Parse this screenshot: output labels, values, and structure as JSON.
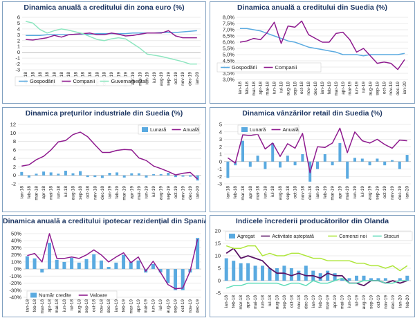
{
  "colors": {
    "blue": "#5aaae0",
    "purple": "#8e1a8e",
    "mint": "#8ee6c0",
    "dark": "#5a1466",
    "lime": "#aee63a",
    "teal": "#5fdcb8",
    "lightblue": "#9fd4f4"
  },
  "chart_data": [
    {
      "type": "line",
      "title": "Dinamica anuală a creditului din zona euro (%)",
      "categories": [
        "ian-18",
        "feb-18",
        "mar-18",
        "apr-18",
        "mai-18",
        "iun-18",
        "iul-18",
        "aug-18",
        "sep-18",
        "oct-18",
        "nov-18",
        "dec-18",
        "ian-19",
        "feb-19",
        "mar-19",
        "apr-19",
        "mai-19",
        "iun-19",
        "iul-19",
        "aug-19",
        "sep-19",
        "oct-19",
        "nov-19",
        "dec-19",
        "ian-20"
      ],
      "ylim": [
        -3,
        6
      ],
      "yticks": [
        "-3",
        "-2",
        "-1",
        "0",
        "1",
        "2",
        "3",
        "4",
        "5",
        "6"
      ],
      "series": [
        {
          "name": "Gospodării",
          "kind": "line",
          "color": "#5aaae0",
          "values": [
            2.9,
            2.9,
            2.9,
            3.0,
            3.0,
            3.0,
            3.0,
            3.1,
            3.1,
            3.1,
            3.2,
            3.2,
            3.2,
            3.2,
            3.2,
            3.3,
            3.3,
            3.3,
            3.3,
            3.4,
            3.4,
            3.4,
            3.5,
            3.6,
            3.7
          ]
        },
        {
          "name": "Companii",
          "kind": "line",
          "color": "#8e1a8e",
          "values": [
            2.2,
            2.1,
            2.3,
            2.5,
            2.9,
            2.6,
            3.0,
            3.1,
            3.2,
            3.3,
            3.0,
            3.0,
            3.3,
            3.1,
            2.8,
            2.9,
            3.1,
            3.3,
            3.3,
            3.3,
            3.7,
            2.8,
            2.5,
            2.5,
            2.5
          ]
        },
        {
          "name": "Guvernamental",
          "kind": "line",
          "color": "#8ee6c0",
          "values": [
            5.3,
            5.0,
            3.9,
            3.3,
            3.7,
            4.0,
            3.8,
            3.5,
            3.2,
            2.7,
            2.2,
            2.0,
            2.3,
            2.5,
            2.3,
            1.5,
            0.7,
            -0.3,
            -0.5,
            -0.7,
            -1.0,
            -1.3,
            -1.6,
            -2.0,
            -2.0
          ]
        }
      ]
    },
    {
      "type": "line",
      "title": "Dinamica anuală a creditului din Suedia (%)",
      "categories": [
        "ian-18",
        "feb-18",
        "mar-18",
        "apr-18",
        "mai-18",
        "iun-18",
        "iul-18",
        "aug-18",
        "sep-18",
        "oct-18",
        "nov-18",
        "dec-18",
        "ian-19",
        "feb-19",
        "mar-19",
        "apr-19",
        "mai-19",
        "iun-19",
        "iul-19",
        "aug-19",
        "sep-19",
        "oct-19",
        "nov-19",
        "dec-19",
        "ian-20"
      ],
      "ylim": [
        3.0,
        8.0
      ],
      "yticks": [
        "3,0%",
        "3,5%",
        "4,0%",
        "4,5%",
        "5,0%",
        "5,5%",
        "6,0%",
        "6,5%",
        "7,0%",
        "7,5%",
        "8,0%"
      ],
      "series": [
        {
          "name": "Gospodării",
          "kind": "line",
          "color": "#5aaae0",
          "values": [
            7.1,
            7.1,
            7.0,
            6.9,
            6.7,
            6.5,
            6.3,
            6.1,
            6.0,
            5.8,
            5.6,
            5.5,
            5.4,
            5.3,
            5.2,
            5.0,
            5.0,
            5.0,
            4.9,
            5.0,
            5.0,
            5.0,
            5.0,
            5.0,
            5.1
          ]
        },
        {
          "name": "Companii",
          "kind": "line",
          "color": "#8e1a8e",
          "values": [
            6.0,
            6.1,
            6.3,
            6.2,
            6.8,
            7.6,
            5.9,
            7.3,
            7.2,
            7.7,
            6.6,
            6.3,
            6.0,
            6.0,
            6.7,
            6.8,
            6.2,
            5.2,
            5.5,
            4.9,
            4.3,
            4.4,
            4.3,
            3.8,
            4.6
          ]
        }
      ]
    },
    {
      "type": "bar+line",
      "title": "Dinamica prețurilor industriale din Suedia (%)",
      "categories": [
        "ian-18",
        "feb-18",
        "mar-18",
        "apr-18",
        "mai-18",
        "iun-18",
        "iul-18",
        "aug-18",
        "sep-18",
        "oct-18",
        "nov-18",
        "dec-18",
        "ian-19",
        "feb-19",
        "mar-19",
        "apr-19",
        "mai-19",
        "iun-19",
        "iul-19",
        "aug-19",
        "sep-19",
        "oct-19",
        "nov-19",
        "dec-19",
        "ian-20"
      ],
      "ylim": [
        -2,
        12
      ],
      "yticks": [
        "-2",
        "0",
        "2",
        "4",
        "6",
        "8",
        "10",
        "12"
      ],
      "series": [
        {
          "name": "Lunară",
          "kind": "bar",
          "color": "#5aaae0",
          "values": [
            0.8,
            -0.5,
            0.4,
            0.9,
            0.7,
            0.4,
            1.1,
            0.5,
            1.0,
            -0.4,
            -0.4,
            -0.6,
            0.6,
            0.7,
            -0.5,
            0.5,
            0.5,
            -0.5,
            0.3,
            0.3,
            0.6,
            -0.4,
            -0.3,
            -0.3,
            -1.2
          ]
        },
        {
          "name": "Anuală",
          "kind": "line",
          "color": "#8e1a8e",
          "values": [
            2.2,
            2.5,
            3.7,
            4.5,
            6.0,
            7.9,
            8.2,
            9.6,
            10.2,
            9.1,
            7.2,
            5.4,
            5.4,
            5.9,
            6.1,
            6.0,
            4.1,
            3.5,
            2.2,
            1.6,
            0.9,
            0.1,
            0.5,
            0.7,
            -0.9
          ]
        }
      ]
    },
    {
      "type": "bar+line",
      "title": "Dinamica vânzărilor retail din Suedia (%)",
      "categories": [
        "ian-18",
        "feb-18",
        "mar-18",
        "apr-18",
        "mai-18",
        "iun-18",
        "iul-18",
        "aug-18",
        "sep-18",
        "oct-18",
        "nov-18",
        "dec-18",
        "ian-19",
        "feb-19",
        "mar-19",
        "apr-19",
        "mai-19",
        "iun-19",
        "iul-19",
        "aug-19",
        "sep-19",
        "oct-19",
        "nov-19",
        "dec-19",
        "ian-20"
      ],
      "ylim": [
        -3,
        5
      ],
      "yticks": [
        "-3",
        "-2",
        "-1",
        "0",
        "1",
        "2",
        "3",
        "4",
        "5"
      ],
      "series": [
        {
          "name": "Lunară",
          "kind": "bar",
          "color": "#5aaae0",
          "values": [
            -2.2,
            -0.5,
            2.8,
            -0.7,
            0.8,
            -1.0,
            2.5,
            -0.8,
            0.8,
            -0.5,
            1.0,
            -2.7,
            -1.0,
            1.0,
            -0.5,
            2.5,
            -2.3,
            0.5,
            0.4,
            -0.5,
            0.4,
            -0.5,
            0.2,
            -1.0,
            0.9
          ]
        },
        {
          "name": "Anuală",
          "kind": "line",
          "color": "#8e1a8e",
          "values": [
            0.5,
            -0.2,
            3.6,
            3.5,
            3.7,
            1.7,
            2.5,
            0.7,
            2.4,
            1.8,
            3.8,
            -1.5,
            2.0,
            1.9,
            2.5,
            4.5,
            1.2,
            4.0,
            2.8,
            2.5,
            3.0,
            2.3,
            1.8,
            2.9,
            2.8
          ]
        }
      ]
    },
    {
      "type": "bar+line",
      "title": "Dinamica anuală a creditului ipotecar rezidențial din Spania",
      "categories": [
        "ian-18",
        "feb-18",
        "mar-18",
        "apr-18",
        "mai-18",
        "iun-18",
        "iul-18",
        "aug-18",
        "sep-18",
        "oct-18",
        "nov-18",
        "dec-18",
        "ian-19",
        "feb-19",
        "mar-19",
        "apr-19",
        "mai-19",
        "iun-19",
        "iul-19",
        "aug-19",
        "sep-19",
        "oct-19",
        "nov-19",
        "dec-19"
      ],
      "ylim": [
        -40,
        50
      ],
      "yticks": [
        "-40%",
        "-30%",
        "-20%",
        "-10%",
        "0%",
        "10%",
        "20%",
        "30%",
        "40%",
        "50%"
      ],
      "series": [
        {
          "name": "Număr credite",
          "kind": "bar",
          "color": "#5aaae0",
          "values": [
            18,
            15,
            -5,
            37,
            13,
            10,
            16,
            9,
            14,
            21,
            12,
            3,
            9,
            20,
            10,
            12,
            -5,
            7,
            -5,
            -20,
            -30,
            -30,
            -5,
            44
          ]
        },
        {
          "name": "Valoare",
          "kind": "line",
          "color": "#8e1a8e",
          "values": [
            19,
            22,
            10,
            50,
            15,
            15,
            17,
            15,
            20,
            27,
            20,
            10,
            17,
            23,
            9,
            17,
            -3,
            11,
            -5,
            -22,
            -28,
            -27,
            -3,
            42
          ]
        }
      ]
    },
    {
      "type": "bar+line",
      "title": "Indicele încrederii producătorilor din Olanda",
      "categories": [
        "ian-18",
        "feb-18",
        "mar-18",
        "apr-18",
        "mai-18",
        "iun-18",
        "iul-18",
        "aug-18",
        "sep-18",
        "oct-18",
        "nov-18",
        "dec-18",
        "ian-19",
        "feb-19",
        "mar-19",
        "apr-19",
        "mai-19",
        "iun-19",
        "iul-19",
        "aug-19",
        "sep-19",
        "oct-19",
        "nov-19",
        "dec-19",
        "ian-20",
        "feb-20"
      ],
      "ylim": [
        -5,
        20
      ],
      "yticks": [
        "-5",
        "0",
        "5",
        "10",
        "15",
        "20"
      ],
      "series": [
        {
          "name": "Agregat",
          "kind": "bar",
          "color": "#5aaae0",
          "values": [
            9,
            8,
            7,
            7,
            6,
            6,
            5,
            5,
            6,
            5,
            4,
            6,
            4,
            3,
            4,
            3,
            1,
            1,
            2,
            2,
            1,
            1,
            1,
            0,
            1,
            2
          ]
        },
        {
          "name": "Activitate așteptată",
          "kind": "line",
          "color": "#5a1466",
          "values": [
            11,
            13,
            9,
            10,
            9,
            8,
            5,
            3,
            3,
            2,
            3,
            2,
            2,
            1,
            3,
            2,
            2,
            -1,
            -1,
            -2,
            0,
            0,
            -1,
            0,
            -1,
            0
          ]
        },
        {
          "name": "Comenzi noi",
          "kind": "line",
          "color": "#aee63a",
          "values": [
            14,
            13,
            13,
            14,
            14,
            10,
            11,
            10,
            10,
            11,
            11,
            10,
            9,
            9,
            8,
            8,
            8,
            8,
            7,
            7,
            6,
            6,
            5,
            6,
            4,
            6
          ]
        },
        {
          "name": "Stocuri",
          "kind": "line",
          "color": "#5fdcb8",
          "values": [
            -3,
            -2,
            -2,
            -1,
            -1,
            -1,
            -1,
            -1,
            -2,
            -1,
            -1,
            -2,
            0,
            -1,
            -1,
            0,
            1,
            -1,
            -1,
            0,
            0,
            0,
            -1,
            -1,
            0,
            0
          ]
        }
      ]
    }
  ]
}
